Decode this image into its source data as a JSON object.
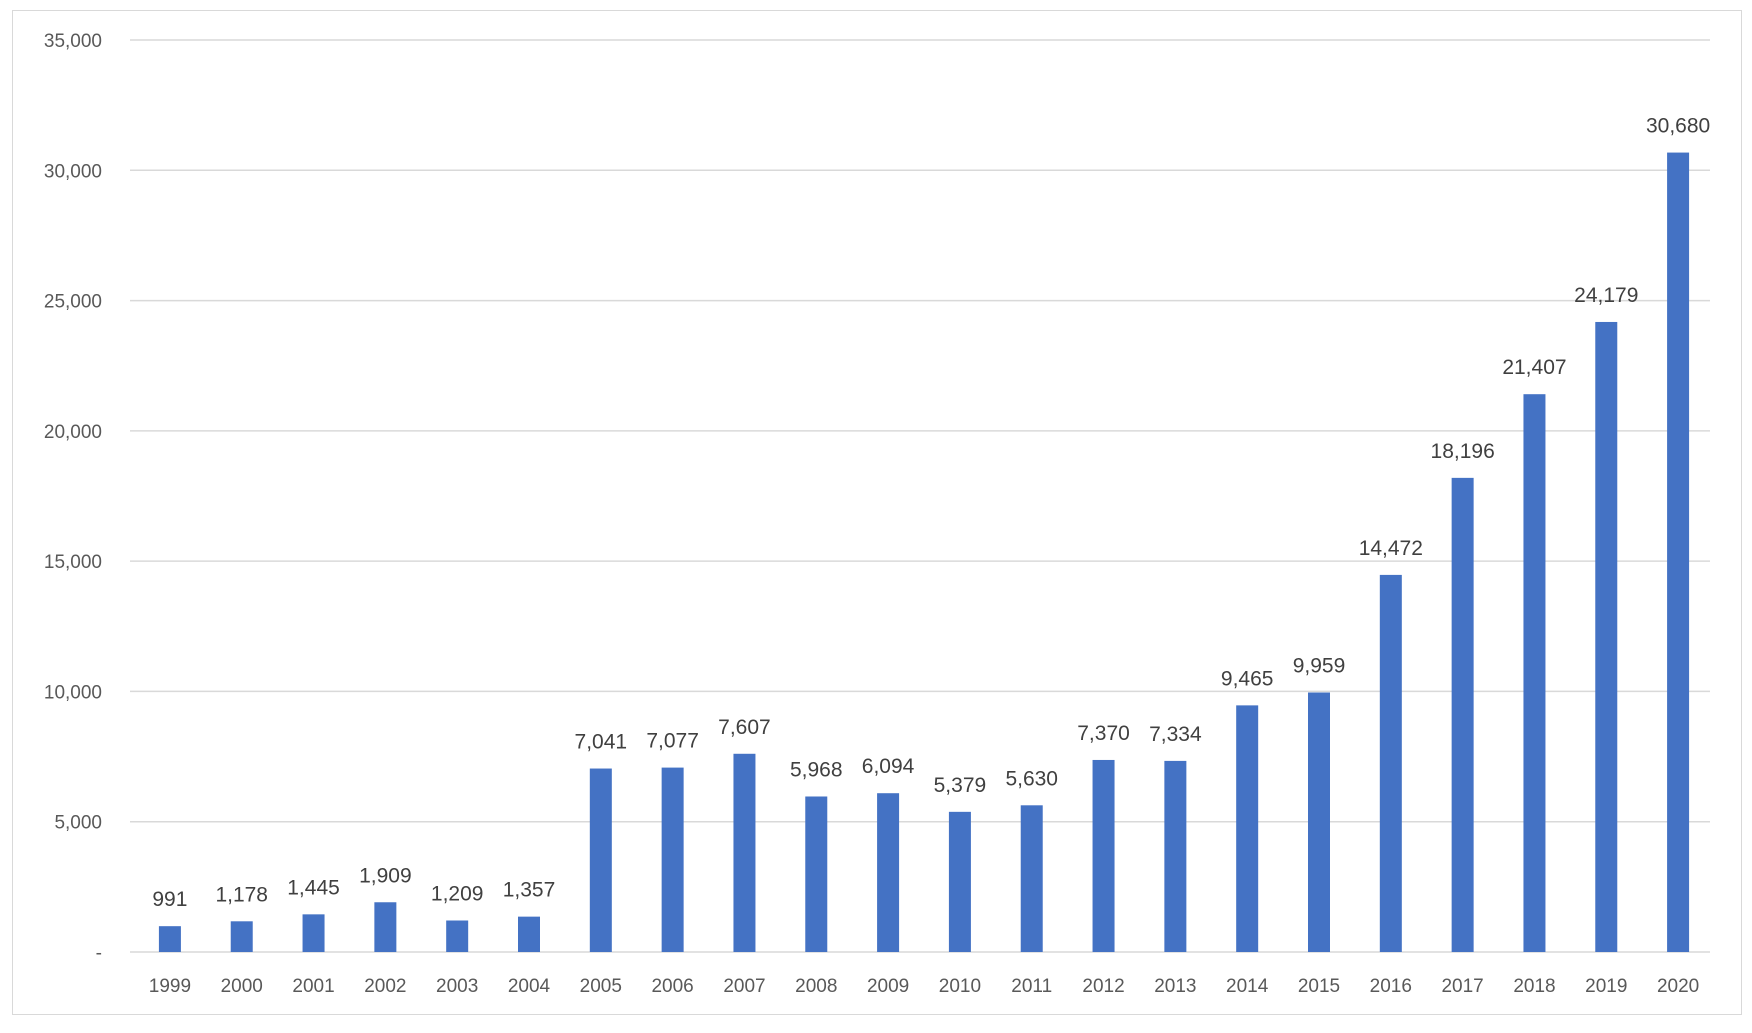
{
  "chart_data": {
    "type": "bar",
    "title": "",
    "xlabel": "",
    "ylabel": "",
    "categories": [
      "1999",
      "2000",
      "2001",
      "2002",
      "2003",
      "2004",
      "2005",
      "2006",
      "2007",
      "2008",
      "2009",
      "2010",
      "2011",
      "2012",
      "2013",
      "2014",
      "2015",
      "2016",
      "2017",
      "2018",
      "2019",
      "2020"
    ],
    "values": [
      991,
      1178,
      1445,
      1909,
      1209,
      1357,
      7041,
      7077,
      7607,
      5968,
      6094,
      5379,
      5630,
      7370,
      7334,
      9465,
      9959,
      14472,
      18196,
      21407,
      24179,
      30680
    ],
    "value_labels": [
      "991",
      "1,178",
      "1,445",
      "1,909",
      "1,209",
      "1,357",
      "7,041",
      "7,077",
      "7,607",
      "5,968",
      "6,094",
      "5,379",
      "5,630",
      "7,370",
      "7,334",
      "9,465",
      "9,959",
      "14,472",
      "18,196",
      "21,407",
      "24,179",
      "30,680"
    ],
    "ylim": [
      0,
      35000
    ],
    "yticks": [
      0,
      5000,
      10000,
      15000,
      20000,
      25000,
      30000,
      35000
    ],
    "ytick_labels": [
      "-",
      "5,000",
      "10,000",
      "15,000",
      "20,000",
      "25,000",
      "30,000",
      "35,000"
    ],
    "grid": true,
    "legend": "none",
    "bar_color": "#4472C4",
    "grid_color": "#d9d9d9"
  }
}
